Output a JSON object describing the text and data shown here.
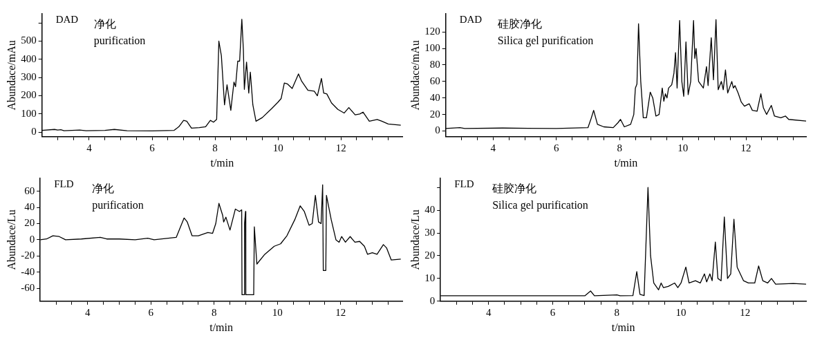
{
  "chart_data": [
    {
      "type": "line",
      "xlabel": "t/min",
      "ylabel": "Abundace/mAu",
      "annotations": [
        "DAD",
        "净化",
        "purification"
      ],
      "xlim": [
        2.5,
        13.95
      ],
      "ylim": [
        -25,
        650
      ],
      "xticks": [
        {
          "value": 3,
          "label": null
        },
        {
          "value": 3.5,
          "label": null
        },
        4,
        {
          "value": 4.5,
          "label": null
        },
        {
          "value": 5,
          "label": null
        },
        {
          "value": 5.5,
          "label": null
        },
        6,
        {
          "value": 6.5,
          "label": null
        },
        {
          "value": 7,
          "label": null
        },
        {
          "value": 7.5,
          "label": null
        },
        8,
        {
          "value": 8.5,
          "label": null
        },
        {
          "value": 9,
          "label": null
        },
        {
          "value": 9.5,
          "label": null
        },
        10,
        {
          "value": 10.5,
          "label": null
        },
        {
          "value": 11,
          "label": null
        },
        {
          "value": 11.5,
          "label": null
        },
        12,
        {
          "value": 12.5,
          "label": null
        },
        {
          "value": 13,
          "label": null
        },
        {
          "value": 13.5,
          "label": null
        }
      ],
      "yticks": [
        0,
        100,
        200,
        300,
        400,
        500,
        {
          "value": 600,
          "label": null
        }
      ],
      "series": [
        {
          "color": "#000000",
          "x": [
            2.5,
            2.9,
            3.0,
            3.1,
            3.2,
            3.7,
            3.9,
            4.5,
            4.8,
            5.2,
            6.0,
            6.7,
            6.85,
            7.0,
            7.1,
            7.25,
            7.5,
            7.7,
            7.85,
            7.95,
            8.05,
            8.12,
            8.2,
            8.3,
            8.38,
            8.5,
            8.6,
            8.65,
            8.72,
            8.78,
            8.85,
            8.9,
            8.93,
            9.0,
            9.07,
            9.12,
            9.2,
            9.3,
            9.5,
            9.8,
            10.0,
            10.1,
            10.2,
            10.3,
            10.45,
            10.6,
            10.65,
            10.75,
            10.95,
            11.15,
            11.25,
            11.38,
            11.45,
            11.55,
            11.7,
            11.9,
            12.1,
            12.25,
            12.45,
            12.6,
            12.7,
            12.9,
            13.15,
            13.3,
            13.5,
            13.9
          ],
          "values": [
            10,
            15,
            12,
            14,
            8,
            12,
            8,
            10,
            15,
            8,
            7,
            10,
            30,
            65,
            60,
            22,
            25,
            30,
            65,
            55,
            70,
            500,
            420,
            150,
            260,
            120,
            275,
            250,
            390,
            390,
            620,
            450,
            235,
            385,
            215,
            330,
            150,
            60,
            80,
            130,
            165,
            185,
            270,
            265,
            240,
            300,
            320,
            280,
            230,
            225,
            200,
            295,
            215,
            210,
            160,
            125,
            105,
            135,
            95,
            100,
            110,
            60,
            70,
            60,
            45,
            38
          ]
        }
      ]
    },
    {
      "type": "line",
      "xlabel": "t/min",
      "ylabel": "Abundace/mAu",
      "annotations": [
        "DAD",
        "硅胶净化",
        "Silica gel purification"
      ],
      "xlim": [
        2.5,
        13.9
      ],
      "ylim": [
        -7,
        142
      ],
      "xticks": [
        {
          "value": 3,
          "label": null
        },
        {
          "value": 3.5,
          "label": null
        },
        4,
        {
          "value": 4.5,
          "label": null
        },
        {
          "value": 5,
          "label": null
        },
        {
          "value": 5.5,
          "label": null
        },
        6,
        {
          "value": 6.5,
          "label": null
        },
        {
          "value": 7,
          "label": null
        },
        {
          "value": 7.5,
          "label": null
        },
        8,
        {
          "value": 8.5,
          "label": null
        },
        {
          "value": 9,
          "label": null
        },
        {
          "value": 9.5,
          "label": null
        },
        10,
        {
          "value": 10.5,
          "label": null
        },
        {
          "value": 11,
          "label": null
        },
        {
          "value": 11.5,
          "label": null
        },
        12,
        {
          "value": 12.5,
          "label": null
        },
        {
          "value": 13,
          "label": null
        },
        {
          "value": 13.5,
          "label": null
        }
      ],
      "yticks": [
        0,
        20,
        40,
        60,
        80,
        100,
        120
      ],
      "series": [
        {
          "color": "#000000",
          "x": [
            2.5,
            2.95,
            3.1,
            4.3,
            6,
            7.0,
            7.1,
            7.18,
            7.3,
            7.5,
            7.8,
            7.95,
            8.03,
            8.15,
            8.35,
            8.45,
            8.5,
            8.55,
            8.6,
            8.67,
            8.75,
            8.85,
            8.97,
            9.05,
            9.15,
            9.25,
            9.35,
            9.4,
            9.45,
            9.5,
            9.55,
            9.65,
            9.72,
            9.77,
            9.82,
            9.9,
            9.97,
            10.03,
            10.1,
            10.17,
            10.25,
            10.34,
            10.38,
            10.42,
            10.5,
            10.65,
            10.75,
            10.8,
            10.9,
            10.97,
            11.05,
            11.12,
            11.22,
            11.28,
            11.35,
            11.42,
            11.55,
            11.6,
            11.65,
            11.75,
            11.85,
            11.95,
            12.1,
            12.2,
            12.35,
            12.47,
            12.55,
            12.65,
            12.8,
            12.9,
            13.1,
            13.25,
            13.35,
            13.9
          ],
          "values": [
            3,
            4,
            3,
            3.5,
            3,
            4,
            15,
            25,
            8,
            5,
            4,
            10,
            14,
            5,
            8,
            20,
            52,
            57,
            130,
            60,
            16,
            16,
            47,
            40,
            18,
            20,
            52,
            36,
            45,
            40,
            52,
            56,
            70,
            95,
            52,
            134,
            60,
            42,
            108,
            44,
            60,
            134,
            88,
            100,
            60,
            52,
            78,
            55,
            113,
            62,
            135,
            50,
            60,
            50,
            74,
            46,
            60,
            52,
            55,
            46,
            35,
            30,
            33,
            25,
            24,
            45,
            28,
            20,
            31,
            18,
            16,
            18,
            14,
            12
          ]
        }
      ]
    },
    {
      "type": "line",
      "xlabel": "t/min",
      "ylabel": "Abundace/Lu",
      "annotations": [
        "FLD",
        "净化",
        "purification"
      ],
      "xlim": [
        2.5,
        13.95
      ],
      "ylim": [
        -76,
        76
      ],
      "xticks": [
        {
          "value": 3,
          "label": null
        },
        {
          "value": 3.5,
          "label": null
        },
        4,
        {
          "value": 4.5,
          "label": null
        },
        {
          "value": 5,
          "label": null
        },
        {
          "value": 5.5,
          "label": null
        },
        6,
        {
          "value": 6.5,
          "label": null
        },
        {
          "value": 7,
          "label": null
        },
        {
          "value": 7.5,
          "label": null
        },
        8,
        {
          "value": 8.5,
          "label": null
        },
        {
          "value": 9,
          "label": null
        },
        {
          "value": 9.5,
          "label": null
        },
        10,
        {
          "value": 10.5,
          "label": null
        },
        {
          "value": 11,
          "label": null
        },
        {
          "value": 11.5,
          "label": null
        },
        12,
        {
          "value": 12.5,
          "label": null
        },
        {
          "value": 13,
          "label": null
        },
        {
          "value": 13.5,
          "label": null
        }
      ],
      "yticks": [
        -60,
        -40,
        -20,
        0,
        20,
        40,
        60
      ],
      "series": [
        {
          "color": "#000000",
          "x": [
            2.5,
            2.7,
            2.9,
            3.1,
            3.3,
            3.8,
            4.4,
            4.6,
            5.0,
            5.5,
            5.9,
            6.1,
            6.8,
            7.05,
            7.15,
            7.3,
            7.5,
            7.8,
            7.95,
            8.05,
            8.15,
            8.27,
            8.3,
            8.37,
            8.5,
            8.67,
            8.8,
            8.87,
            8.88,
            8.95,
            8.96,
            8.99,
            9.0,
            9.25,
            9.27,
            9.35,
            9.6,
            9.9,
            10.1,
            10.3,
            10.55,
            10.72,
            10.85,
            11.0,
            11.1,
            11.2,
            11.3,
            11.38,
            11.43,
            11.45,
            11.53,
            11.55,
            11.7,
            11.85,
            11.95,
            12.03,
            12.15,
            12.3,
            12.45,
            12.6,
            12.75,
            12.85,
            13.0,
            13.15,
            13.35,
            13.45,
            13.6,
            13.9
          ],
          "values": [
            0,
            1,
            5,
            4,
            0,
            1,
            3,
            1,
            1,
            0,
            2,
            0,
            3,
            27,
            22,
            5,
            5,
            9,
            8,
            20,
            45,
            30,
            22,
            28,
            12,
            38,
            35,
            37,
            -68,
            -68,
            20,
            35,
            -68,
            -68,
            16,
            -30,
            -18,
            -8,
            -5,
            5,
            25,
            42,
            35,
            18,
            20,
            55,
            22,
            20,
            68,
            -38,
            -38,
            55,
            25,
            0,
            -3,
            4,
            -3,
            4,
            -3,
            -2,
            -8,
            -18,
            -16,
            -18,
            -6,
            -10,
            -25,
            -24
          ]
        }
      ]
    },
    {
      "type": "line",
      "xlabel": "t/min",
      "ylabel": "Abundace/Lu",
      "annotations": [
        "FLD",
        "硅胶净化",
        "Silica gel purification"
      ],
      "xlim": [
        2.5,
        13.9
      ],
      "ylim": [
        0,
        54
      ],
      "xticks": [
        {
          "value": 3,
          "label": null
        },
        {
          "value": 3.5,
          "label": null
        },
        4,
        {
          "value": 4.5,
          "label": null
        },
        {
          "value": 5,
          "label": null
        },
        {
          "value": 5.5,
          "label": null
        },
        6,
        {
          "value": 6.5,
          "label": null
        },
        {
          "value": 7,
          "label": null
        },
        {
          "value": 7.5,
          "label": null
        },
        8,
        {
          "value": 8.5,
          "label": null
        },
        {
          "value": 9,
          "label": null
        },
        {
          "value": 9.5,
          "label": null
        },
        10,
        {
          "value": 10.5,
          "label": null
        },
        {
          "value": 11,
          "label": null
        },
        {
          "value": 11.5,
          "label": null
        },
        12,
        {
          "value": 12.5,
          "label": null
        },
        {
          "value": 13,
          "label": null
        },
        {
          "value": 13.5,
          "label": null
        }
      ],
      "yticks": [
        0,
        10,
        20,
        30,
        40,
        {
          "value": 50,
          "label": null
        }
      ],
      "series": [
        {
          "color": "#000000",
          "x": [
            2.5,
            7.0,
            7.18,
            7.3,
            8.0,
            8.1,
            8.5,
            8.62,
            8.72,
            8.85,
            8.97,
            9.05,
            9.15,
            9.3,
            9.38,
            9.45,
            9.6,
            9.8,
            9.9,
            10.0,
            10.15,
            10.25,
            10.45,
            10.6,
            10.73,
            10.8,
            10.9,
            10.97,
            11.07,
            11.15,
            11.25,
            11.35,
            11.45,
            11.55,
            11.65,
            11.75,
            11.95,
            12.1,
            12.3,
            12.42,
            12.55,
            12.7,
            12.82,
            12.95,
            13.5,
            13.9
          ],
          "values": [
            2.4,
            2.4,
            4.5,
            2.4,
            2.8,
            2.4,
            2.5,
            13,
            3,
            2.5,
            50,
            20,
            8,
            5,
            8,
            6,
            6.5,
            8,
            6,
            8,
            15,
            8,
            9,
            8,
            12,
            8.5,
            12,
            9,
            26,
            10,
            9,
            37,
            10,
            12,
            36,
            15,
            9,
            8,
            8,
            15.5,
            9,
            8,
            10,
            7.5,
            7.8,
            7.5
          ]
        }
      ]
    }
  ]
}
